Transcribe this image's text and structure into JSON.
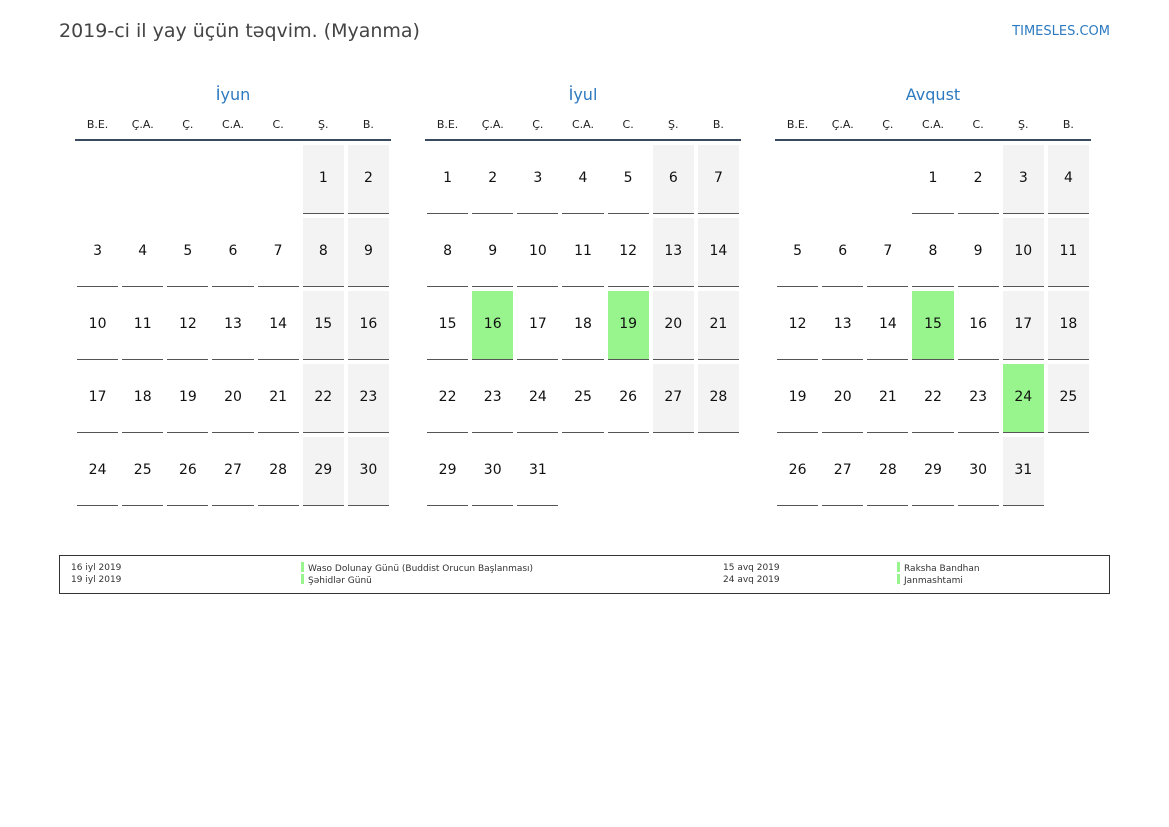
{
  "title": "2019-ci il yay üçün təqvim. (Myanma)",
  "site": "TIMESLES.COM",
  "weekdays": [
    "B.E.",
    "Ç.A.",
    "Ç.",
    "C.A.",
    "C.",
    "Ş.",
    "B."
  ],
  "colors": {
    "accent": "#2d7ac0",
    "holiday": "#98f58d",
    "weekend": "#f3f3f3"
  },
  "months": [
    {
      "name": "İyun",
      "weeks": [
        [
          "",
          "",
          "",
          "",
          "",
          "1",
          "2"
        ],
        [
          "3",
          "4",
          "5",
          "6",
          "7",
          "8",
          "9"
        ],
        [
          "10",
          "11",
          "12",
          "13",
          "14",
          "15",
          "16"
        ],
        [
          "17",
          "18",
          "19",
          "20",
          "21",
          "22",
          "23"
        ],
        [
          "24",
          "25",
          "26",
          "27",
          "28",
          "29",
          "30"
        ]
      ],
      "holidays": []
    },
    {
      "name": "İyul",
      "weeks": [
        [
          "1",
          "2",
          "3",
          "4",
          "5",
          "6",
          "7"
        ],
        [
          "8",
          "9",
          "10",
          "11",
          "12",
          "13",
          "14"
        ],
        [
          "15",
          "16",
          "17",
          "18",
          "19",
          "20",
          "21"
        ],
        [
          "22",
          "23",
          "24",
          "25",
          "26",
          "27",
          "28"
        ],
        [
          "29",
          "30",
          "31",
          "",
          "",
          "",
          ""
        ]
      ],
      "holidays": [
        "16",
        "19"
      ]
    },
    {
      "name": "Avqust",
      "weeks": [
        [
          "",
          "",
          "",
          "1",
          "2",
          "3",
          "4"
        ],
        [
          "5",
          "6",
          "7",
          "8",
          "9",
          "10",
          "11"
        ],
        [
          "12",
          "13",
          "14",
          "15",
          "16",
          "17",
          "18"
        ],
        [
          "19",
          "20",
          "21",
          "22",
          "23",
          "24",
          "25"
        ],
        [
          "26",
          "27",
          "28",
          "29",
          "30",
          "31",
          ""
        ]
      ],
      "holidays": [
        "15",
        "24"
      ]
    }
  ],
  "legend": {
    "left": [
      {
        "date": "16 iyl 2019",
        "name": "Waso Dolunay Günü (Buddist Orucun Başlanması)"
      },
      {
        "date": "19 iyl 2019",
        "name": "Şəhidlər Günü"
      }
    ],
    "right": [
      {
        "date": "15 avq 2019",
        "name": "Raksha Bandhan"
      },
      {
        "date": "24 avq 2019",
        "name": "Janmashtami"
      }
    ]
  }
}
